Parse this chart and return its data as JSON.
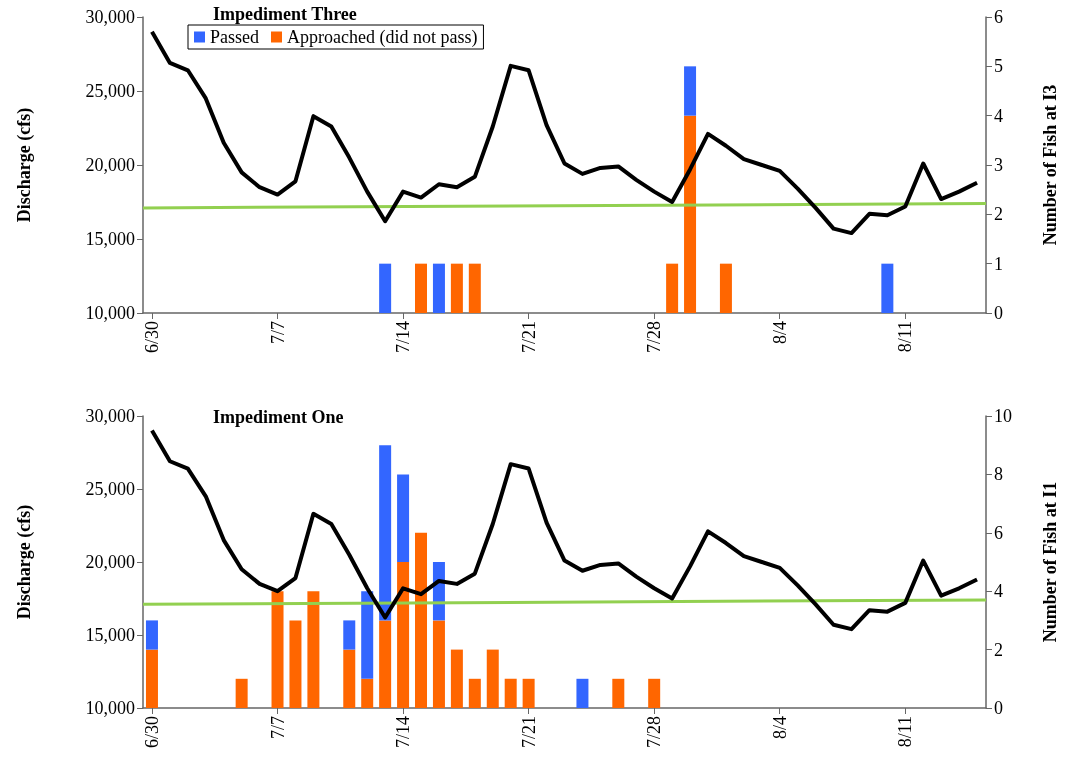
{
  "chart_data": [
    {
      "type": "bar",
      "title": "Impediment Three",
      "ylabel": "Discharge (cfs)",
      "y2label": "Number of Fish at I3",
      "stacked": true,
      "legend": "top left",
      "grid": false,
      "x": [
        "--06-30",
        "--07-01",
        "--07-02",
        "--07-03",
        "--07-04",
        "--07-05",
        "--07-06",
        "--07-07",
        "--07-08",
        "--07-09",
        "--07-10",
        "--07-11",
        "--07-12",
        "--07-13",
        "--07-14",
        "--07-15",
        "--07-16",
        "--07-17",
        "--07-18",
        "--07-19",
        "--07-20",
        "--07-21",
        "--07-22",
        "--07-23",
        "--07-24",
        "--07-25",
        "--07-26",
        "--07-27",
        "--07-28",
        "--07-29",
        "--07-30",
        "--07-31",
        "--08-01",
        "--08-02",
        "--08-03",
        "--08-04",
        "--08-05",
        "--08-06",
        "--08-07",
        "--08-08",
        "--08-09",
        "--08-10",
        "--08-11",
        "--08-12",
        "--08-13",
        "--08-14",
        "--08-15"
      ],
      "xlim": [
        "--06-29T12:00",
        "--08-15T12:00"
      ],
      "xticks": [
        {
          "value": "--06-30",
          "label": "6/30"
        },
        {
          "value": "--07-07",
          "label": "7/7"
        },
        {
          "value": "--07-14",
          "label": "7/14"
        },
        {
          "value": "--07-21",
          "label": "7/21"
        },
        {
          "value": "--07-28",
          "label": "7/28"
        },
        {
          "value": "--08-04",
          "label": "8/4"
        },
        {
          "value": "--08-11",
          "label": "8/11"
        }
      ],
      "ylim": [
        10000,
        30000
      ],
      "yticks": [
        {
          "value": 10000,
          "label": "10,000"
        },
        {
          "value": 15000,
          "label": "15,000"
        },
        {
          "value": 20000,
          "label": "20,000"
        },
        {
          "value": 25000,
          "label": "25,000"
        },
        {
          "value": 30000,
          "label": "30,000"
        }
      ],
      "y2lim": [
        0,
        6
      ],
      "y2ticks": [
        0,
        1,
        2,
        3,
        4,
        5,
        6
      ],
      "series": [
        {
          "type": "line",
          "color": "#000000",
          "values": [
            29000,
            26900,
            26400,
            24500,
            21500,
            19500,
            18500,
            18000,
            18900,
            23300,
            22600,
            20500,
            18200,
            16200,
            18200,
            17800,
            18700,
            18500,
            19200,
            22600,
            26700,
            26400,
            22700,
            20100,
            19400,
            19800,
            19900,
            19000,
            18200,
            17500,
            19700,
            22100,
            21300,
            20400,
            20000,
            19600,
            18400,
            17100,
            15700,
            15400,
            16700,
            16600,
            17200,
            20100,
            17700,
            18200,
            18800
          ]
        },
        {
          "type": "line",
          "color": "#92d050",
          "x": [
            "--06-29T12:00",
            "--08-15T12:00"
          ],
          "values": [
            17100,
            17400
          ]
        },
        {
          "name": "Approached (did not pass)",
          "axis": "y2",
          "color": "#ff6600",
          "values": [
            0,
            0,
            0,
            0,
            0,
            0,
            0,
            0,
            0,
            0,
            0,
            0,
            0,
            0,
            0,
            1,
            0,
            1,
            1,
            0,
            0,
            0,
            0,
            0,
            0,
            0,
            0,
            0,
            0,
            1,
            4,
            0,
            1,
            0,
            0,
            0,
            0,
            0,
            0,
            0,
            0,
            0,
            0,
            0,
            0,
            0,
            0
          ]
        },
        {
          "name": "Passed",
          "axis": "y2",
          "color": "#3366ff",
          "values": [
            0,
            0,
            0,
            0,
            0,
            0,
            0,
            0,
            0,
            0,
            0,
            0,
            0,
            1,
            0,
            0,
            1,
            0,
            0,
            0,
            0,
            0,
            0,
            0,
            0,
            0,
            0,
            0,
            0,
            0,
            1,
            0,
            0,
            0,
            0,
            0,
            0,
            0,
            0,
            0,
            0,
            1,
            0,
            0,
            0,
            0,
            0
          ]
        }
      ]
    },
    {
      "type": "bar",
      "title": "Impediment One",
      "ylabel": "Discharge (cfs)",
      "y2label": "Number of Fish at I1",
      "stacked": true,
      "grid": false,
      "x": [
        "--06-30",
        "--07-01",
        "--07-02",
        "--07-03",
        "--07-04",
        "--07-05",
        "--07-06",
        "--07-07",
        "--07-08",
        "--07-09",
        "--07-10",
        "--07-11",
        "--07-12",
        "--07-13",
        "--07-14",
        "--07-15",
        "--07-16",
        "--07-17",
        "--07-18",
        "--07-19",
        "--07-20",
        "--07-21",
        "--07-22",
        "--07-23",
        "--07-24",
        "--07-25",
        "--07-26",
        "--07-27",
        "--07-28",
        "--07-29",
        "--07-30",
        "--07-31",
        "--08-01",
        "--08-02",
        "--08-03",
        "--08-04",
        "--08-05",
        "--08-06",
        "--08-07",
        "--08-08",
        "--08-09",
        "--08-10",
        "--08-11",
        "--08-12",
        "--08-13",
        "--08-14",
        "--08-15"
      ],
      "xlim": [
        "--06-29T12:00",
        "--08-15T12:00"
      ],
      "xticks": [
        {
          "value": "--06-30",
          "label": "6/30"
        },
        {
          "value": "--07-07",
          "label": "7/7"
        },
        {
          "value": "--07-14",
          "label": "7/14"
        },
        {
          "value": "--07-21",
          "label": "7/21"
        },
        {
          "value": "--07-28",
          "label": "7/28"
        },
        {
          "value": "--08-04",
          "label": "8/4"
        },
        {
          "value": "--08-11",
          "label": "8/11"
        }
      ],
      "ylim": [
        10000,
        30000
      ],
      "yticks": [
        {
          "value": 10000,
          "label": "10,000"
        },
        {
          "value": 15000,
          "label": "15,000"
        },
        {
          "value": 20000,
          "label": "20,000"
        },
        {
          "value": 25000,
          "label": "25,000"
        },
        {
          "value": 30000,
          "label": "30,000"
        }
      ],
      "y2lim": [
        0,
        10
      ],
      "y2ticks": [
        0,
        2,
        4,
        6,
        8,
        10
      ],
      "series": [
        {
          "type": "line",
          "color": "#000000",
          "values": [
            29000,
            26900,
            26400,
            24500,
            21500,
            19500,
            18500,
            18000,
            18900,
            23300,
            22600,
            20500,
            18200,
            16200,
            18200,
            17800,
            18700,
            18500,
            19200,
            22600,
            26700,
            26400,
            22700,
            20100,
            19400,
            19800,
            19900,
            19000,
            18200,
            17500,
            19700,
            22100,
            21300,
            20400,
            20000,
            19600,
            18400,
            17100,
            15700,
            15400,
            16700,
            16600,
            17200,
            20100,
            17700,
            18200,
            18800
          ]
        },
        {
          "type": "line",
          "color": "#92d050",
          "x": [
            "--06-29T12:00",
            "--08-15T12:00"
          ],
          "values": [
            17100,
            17400
          ]
        },
        {
          "axis": "y2",
          "color": "#ff6600",
          "values": [
            2,
            0,
            0,
            0,
            0,
            1,
            0,
            4,
            3,
            4,
            0,
            2,
            1,
            3,
            5,
            6,
            3,
            2,
            1,
            2,
            1,
            1,
            0,
            0,
            0,
            0,
            1,
            0,
            1,
            0,
            0,
            0,
            0,
            0,
            0,
            0,
            0,
            0,
            0,
            0,
            0,
            0,
            0,
            0,
            0,
            0,
            0
          ]
        },
        {
          "axis": "y2",
          "color": "#3366ff",
          "values": [
            1,
            0,
            0,
            0,
            0,
            0,
            0,
            0,
            0,
            0,
            0,
            1,
            3,
            6,
            3,
            0,
            2,
            0,
            0,
            0,
            0,
            0,
            0,
            0,
            1,
            0,
            0,
            0,
            0,
            0,
            0,
            0,
            0,
            0,
            0,
            0,
            0,
            0,
            0,
            0,
            0,
            0,
            0,
            0,
            0,
            0,
            0
          ]
        }
      ]
    }
  ]
}
